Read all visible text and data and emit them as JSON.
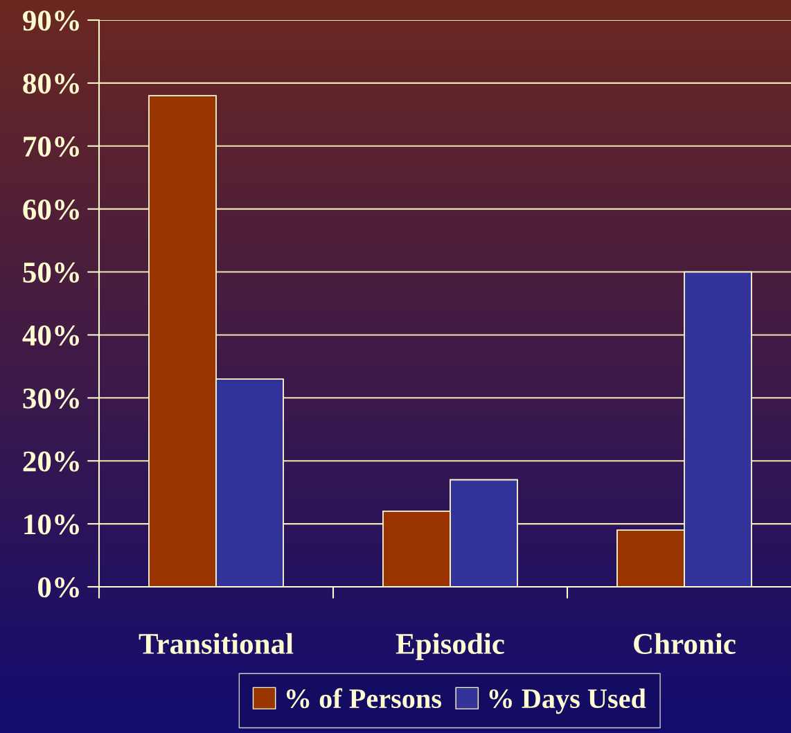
{
  "chart_data": {
    "type": "bar",
    "categories": [
      "Transitional",
      "Episodic",
      "Chronic"
    ],
    "series": [
      {
        "name": "% of Persons",
        "color": "#993300",
        "values": [
          78,
          12,
          9
        ]
      },
      {
        "name": "% Days Used",
        "color": "#333399",
        "values": [
          33,
          17,
          50
        ]
      }
    ],
    "ylim": [
      0,
      90
    ],
    "yticks": [
      {
        "value": 0,
        "label": "0%"
      },
      {
        "value": 10,
        "label": "10%"
      },
      {
        "value": 20,
        "label": "20%"
      },
      {
        "value": 30,
        "label": "30%"
      },
      {
        "value": 40,
        "label": "40%"
      },
      {
        "value": 50,
        "label": "50%"
      },
      {
        "value": 60,
        "label": "60%"
      },
      {
        "value": 70,
        "label": "70%"
      },
      {
        "value": 80,
        "label": "80%"
      },
      {
        "value": 90,
        "label": "90%"
      }
    ],
    "grid": "y",
    "legend": "bottom"
  }
}
